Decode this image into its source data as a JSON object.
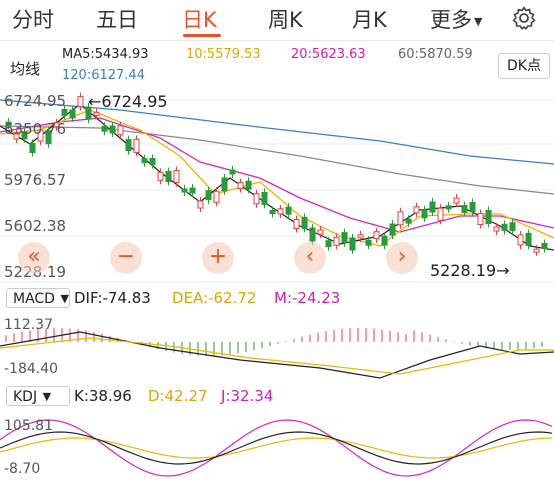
{
  "tabs": [
    {
      "label": "分时",
      "active": false
    },
    {
      "label": "五日",
      "active": false
    },
    {
      "label": "日K",
      "active": true
    },
    {
      "label": "周K",
      "active": false
    },
    {
      "label": "月K",
      "active": false
    },
    {
      "label": "更多",
      "active": false
    }
  ],
  "ma": {
    "ma5": "MA5:5434.93",
    "ma10": "10:5579.53",
    "ma20": "20:5623.63",
    "ma60": "60:5870.59",
    "ma120": "120:6127.44"
  },
  "junxian_label": "均线",
  "dk_label": "DK点",
  "price_axis": [
    "6724.95",
    "6350.76",
    "5976.57",
    "5602.38",
    "5228.19"
  ],
  "high_marker": "←6724.95",
  "low_marker": "5228.19→",
  "controls": [
    "«",
    "−",
    "+",
    "‹",
    "›"
  ],
  "macd": {
    "selector": "MACD",
    "dif": "DIF:-74.83",
    "dea": "DEA:-62.72",
    "m": "M:-24.23",
    "axis_top": "112.37",
    "axis_bottom": "-184.40"
  },
  "kdj": {
    "selector": "KDJ",
    "k": "K:38.96",
    "d": "D:42.27",
    "j": "J:32.34",
    "axis_top": "105.81",
    "axis_bottom": "-8.70"
  },
  "colors": {
    "accent": "#e8542a",
    "up": "#e94040",
    "down": "#2a9a3a",
    "ma5": "#222222",
    "ma10": "#e8b800",
    "ma20": "#d426c4",
    "ma60": "#888888",
    "ma120": "#3a7fc4"
  },
  "icons": {
    "settings": "gear-icon",
    "dropdown": "caret-down-icon"
  }
}
